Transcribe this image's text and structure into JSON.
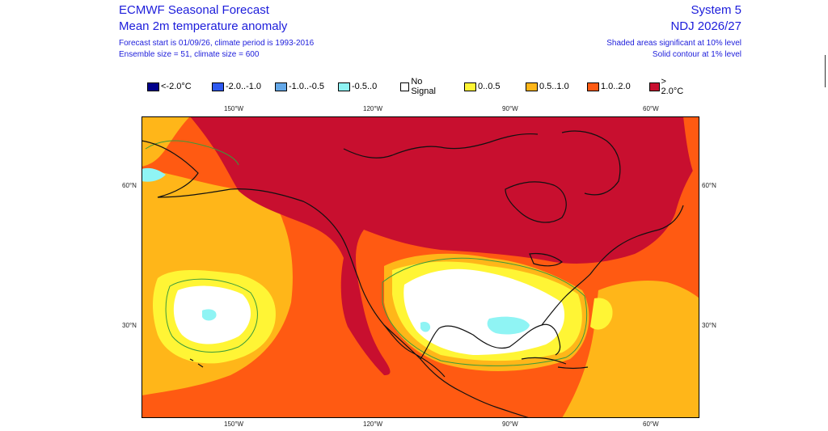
{
  "header": {
    "title": "ECMWF Seasonal Forecast",
    "subtitle": "Mean 2m temperature anomaly",
    "line3": "Forecast start is 01/09/26, climate period is 1993-2016",
    "line4": "Ensemble size = 51, climate size = 600",
    "system": "System 5",
    "period": "NDJ 2026/27",
    "note1": "Shaded areas significant at 10% level",
    "note2": "Solid contour at 1% level"
  },
  "legend": [
    {
      "label": "<-2.0°C",
      "color": "#00008b"
    },
    {
      "label": "-2.0..-1.0",
      "color": "#2e59f0"
    },
    {
      "label": "-1.0..-0.5",
      "color": "#64a8e8"
    },
    {
      "label": "-0.5..0",
      "color": "#8ff4f4"
    },
    {
      "label": "No Signal",
      "color": "#ffffff"
    },
    {
      "label": "0..0.5",
      "color": "#fff535"
    },
    {
      "label": "0.5..1.0",
      "color": "#ffb619"
    },
    {
      "label": "1.0..2.0",
      "color": "#ff5a12"
    },
    {
      "label": "> 2.0°C",
      "color": "#c80f2f"
    }
  ],
  "axes": {
    "lon_labels": [
      "150°W",
      "120°W",
      "90°W",
      "60°W"
    ],
    "lat_labels": [
      "60°N",
      "30°N"
    ]
  },
  "colors": {
    "gt2": "#c80f2f",
    "c1to2": "#ff5a12",
    "c05to1": "#ffb619",
    "c0to05": "#fff535",
    "nosignal": "#ffffff",
    "neg05to0": "#8ff4f4",
    "coast": "#111111",
    "contour": "#3a9a3a"
  }
}
